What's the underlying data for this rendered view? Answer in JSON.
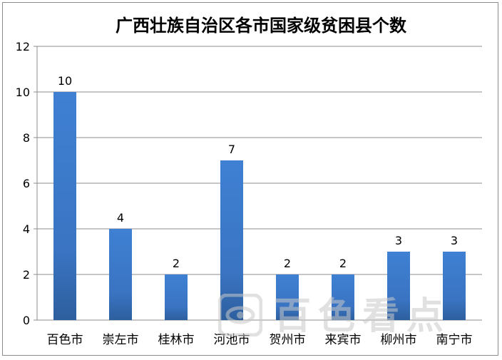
{
  "chart_data": {
    "type": "bar",
    "title": "广西壮族自治区各市国家级贫困县个数",
    "categories": [
      "百色市",
      "崇左市",
      "桂林市",
      "河池市",
      "贺州市",
      "来宾市",
      "柳州市",
      "南宁市"
    ],
    "values": [
      10,
      4,
      2,
      7,
      2,
      2,
      3,
      3
    ],
    "ylim": [
      0,
      12
    ],
    "yticks": [
      0,
      2,
      4,
      6,
      8,
      10,
      12
    ],
    "grid": true,
    "legend": "none",
    "bar_color": "#3a78c9"
  },
  "watermark": {
    "text": "百色看点"
  }
}
